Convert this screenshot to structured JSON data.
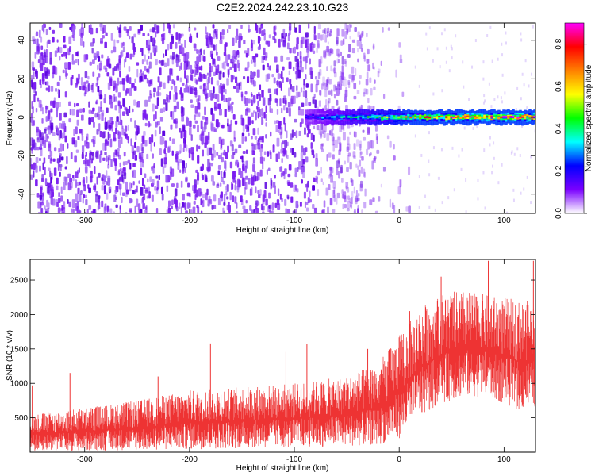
{
  "title": "C2E2.2024.242.23.10.G23",
  "chart_data": [
    {
      "type": "heatmap",
      "xlabel": "Height of straight line (km)",
      "ylabel": "Frequency (Hz)",
      "xlim": [
        -352,
        130
      ],
      "ylim": [
        -50,
        49
      ],
      "xticks": [
        -300,
        -200,
        -100,
        0,
        100
      ],
      "xtick_labels": [
        "-300",
        "-200",
        "-100",
        "0",
        "100"
      ],
      "yticks": [
        -40,
        -20,
        0,
        20,
        40
      ],
      "ytick_labels": [
        "-40",
        "-20",
        "0",
        "20",
        "40"
      ],
      "colorbar": {
        "label": "Normalized spectral amplitude",
        "range": [
          0,
          0.9
        ],
        "ticks": [
          0.0,
          0.2,
          0.4,
          0.6,
          0.8
        ],
        "tick_labels": [
          "0.0",
          "0.2",
          "0.4",
          "0.6",
          "0.8"
        ],
        "colormap": [
          "#ffffff",
          "#7a00ff",
          "#0000ff",
          "#00ffff",
          "#00ff00",
          "#ffff00",
          "#ff8000",
          "#ff0000",
          "#ff00ff"
        ]
      },
      "background_noise": {
        "x_range": [
          -352,
          -20
        ],
        "frequency_range": [
          -50,
          49
        ],
        "amplitude": 0.1,
        "color": "#7a1cf0"
      },
      "signal_band": {
        "x_range": [
          -90,
          130
        ],
        "frequency": 0,
        "bandwidth_hz": 3,
        "amplitude_start": 0.25,
        "amplitude_end": 0.9
      },
      "grid": false
    },
    {
      "type": "line",
      "xlabel": "Height of straight line (km)",
      "ylabel": "SNR (10 * v/v)",
      "xlim": [
        -352,
        130
      ],
      "ylim": [
        0,
        2800
      ],
      "xticks": [
        -300,
        -200,
        -100,
        0,
        100
      ],
      "xtick_labels": [
        "-300",
        "-200",
        "-100",
        "0",
        "100"
      ],
      "yticks": [
        500,
        1000,
        1500,
        2000,
        2500
      ],
      "ytick_labels": [
        "500",
        "1000",
        "1500",
        "2000",
        "2500"
      ],
      "series": [
        {
          "color": "#ee3333",
          "envelope": {
            "x": [
              -352,
              -300,
              -250,
              -200,
              -150,
              -100,
              -50,
              -20,
              0,
              20,
              40,
              60,
              80,
              100,
              115,
              130
            ],
            "lower": [
              20,
              20,
              30,
              40,
              60,
              70,
              90,
              100,
              200,
              500,
              700,
              800,
              800,
              700,
              600,
              650
            ],
            "upper": [
              550,
              650,
              750,
              900,
              950,
              1000,
              1100,
              1300,
              1700,
              2100,
              2300,
              2350,
              2300,
              2250,
              2200,
              2200
            ]
          },
          "peaks": [
            {
              "x": -350,
              "y": 970
            },
            {
              "x": -314,
              "y": 1150
            },
            {
              "x": -230,
              "y": 1100
            },
            {
              "x": -180,
              "y": 1580
            },
            {
              "x": -108,
              "y": 1460
            },
            {
              "x": -88,
              "y": 1570
            },
            {
              "x": -30,
              "y": 1500
            },
            {
              "x": 10,
              "y": 2050
            },
            {
              "x": 40,
              "y": 2550
            },
            {
              "x": 85,
              "y": 2780
            },
            {
              "x": 128,
              "y": 2780
            }
          ]
        }
      ],
      "grid": false
    }
  ]
}
